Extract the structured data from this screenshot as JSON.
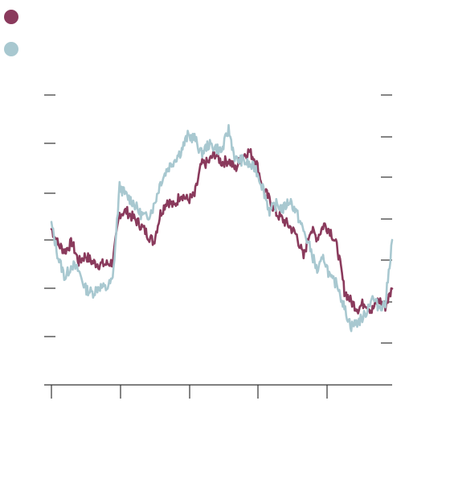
{
  "chart_data": {
    "type": "line",
    "title": "",
    "xlabel": "",
    "ylabel": "",
    "grid": false,
    "legend_position": "top-left",
    "x": [
      0,
      2,
      4,
      6,
      8,
      10,
      12,
      14,
      16,
      18,
      20,
      22,
      24,
      26,
      28,
      30,
      32,
      34,
      36,
      38,
      40,
      42,
      44,
      46,
      48,
      50,
      52,
      54,
      56,
      58,
      60,
      62,
      64,
      66,
      68,
      70,
      72,
      74,
      76,
      78,
      80,
      82,
      84,
      86,
      88,
      90,
      92,
      94,
      96,
      98,
      100
    ],
    "xlim": [
      0,
      100
    ],
    "ylim": [
      0,
      100
    ],
    "series": [
      {
        "name": "",
        "color": "#8a3a5c",
        "axis": "left",
        "values": [
          53,
          46,
          43,
          47,
          38,
          41,
          38,
          37,
          37,
          38,
          60,
          61,
          58,
          55,
          51,
          47,
          60,
          66,
          63,
          69,
          66,
          68,
          82,
          83,
          87,
          83,
          84,
          80,
          86,
          88,
          84,
          72,
          66,
          60,
          57,
          54,
          50,
          40,
          53,
          49,
          55,
          52,
          44,
          25,
          20,
          17,
          20,
          16,
          21,
          18,
          26
        ]
      },
      {
        "name": "",
        "color": "#a8c8d0",
        "axis": "right",
        "values": [
          55,
          40,
          31,
          37,
          34,
          26,
          24,
          27,
          26,
          30,
          72,
          68,
          65,
          60,
          58,
          63,
          74,
          80,
          84,
          88,
          95,
          94,
          87,
          91,
          90,
          88,
          98,
          84,
          84,
          82,
          80,
          72,
          61,
          64,
          62,
          66,
          60,
          52,
          44,
          34,
          40,
          30,
          28,
          17,
          9,
          11,
          14,
          22,
          18,
          19,
          48
        ]
      }
    ]
  }
}
